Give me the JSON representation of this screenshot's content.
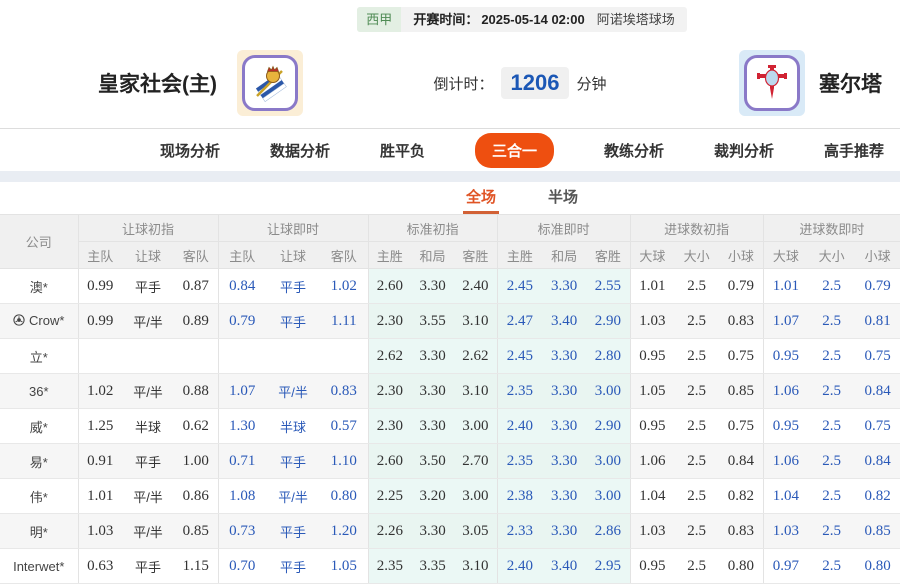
{
  "top_bar": {
    "league": "西甲",
    "kickoff_label": "开赛时间：",
    "kickoff_time": "2025-05-14 02:00",
    "venue": "阿诺埃塔球场"
  },
  "match_header": {
    "home_name": "皇家社会(主)",
    "away_name": "塞尔塔",
    "countdown_label": "倒计时：",
    "countdown_value": "1206",
    "countdown_unit": "分钟"
  },
  "nav_tabs": [
    {
      "label": "现场分析",
      "active": false
    },
    {
      "label": "数据分析",
      "active": false
    },
    {
      "label": "胜平负",
      "active": false
    },
    {
      "label": "三合一",
      "active": true
    },
    {
      "label": "教练分析",
      "active": false
    },
    {
      "label": "裁判分析",
      "active": false
    },
    {
      "label": "高手推荐",
      "active": false
    }
  ],
  "sub_tabs": [
    {
      "label": "全场",
      "active": true
    },
    {
      "label": "半场",
      "active": false
    }
  ],
  "odds_table": {
    "company_header": "公司",
    "groups": [
      {
        "label": "让球初指",
        "cols": [
          "主队",
          "让球",
          "客队"
        ]
      },
      {
        "label": "让球即时",
        "cols": [
          "主队",
          "让球",
          "客队"
        ]
      },
      {
        "label": "标准初指",
        "cols": [
          "主胜",
          "和局",
          "客胜"
        ]
      },
      {
        "label": "标准即时",
        "cols": [
          "主胜",
          "和局",
          "客胜"
        ]
      },
      {
        "label": "进球数初指",
        "cols": [
          "大球",
          "大小",
          "小球"
        ]
      },
      {
        "label": "进球数即时",
        "cols": [
          "大球",
          "大小",
          "小球"
        ]
      }
    ],
    "rows": [
      {
        "company": "澳*",
        "has_icon": false,
        "cells": [
          [
            "0.99",
            "平手",
            "0.87"
          ],
          [
            "0.84",
            "平手",
            "1.02"
          ],
          [
            "2.60",
            "3.30",
            "2.40"
          ],
          [
            "2.45",
            "3.30",
            "2.55"
          ],
          [
            "1.01",
            "2.5",
            "0.79"
          ],
          [
            "1.01",
            "2.5",
            "0.79"
          ]
        ]
      },
      {
        "company": "Crow*",
        "has_icon": true,
        "cells": [
          [
            "0.99",
            "平/半",
            "0.89"
          ],
          [
            "0.79",
            "平手",
            "1.11"
          ],
          [
            "2.30",
            "3.55",
            "3.10"
          ],
          [
            "2.47",
            "3.40",
            "2.90"
          ],
          [
            "1.03",
            "2.5",
            "0.83"
          ],
          [
            "1.07",
            "2.5",
            "0.81"
          ]
        ]
      },
      {
        "company": "立*",
        "has_icon": false,
        "cells": [
          [
            "",
            "",
            ""
          ],
          [
            "",
            "",
            ""
          ],
          [
            "2.62",
            "3.30",
            "2.62"
          ],
          [
            "2.45",
            "3.30",
            "2.80"
          ],
          [
            "0.95",
            "2.5",
            "0.75"
          ],
          [
            "0.95",
            "2.5",
            "0.75"
          ]
        ]
      },
      {
        "company": "36*",
        "has_icon": false,
        "cells": [
          [
            "1.02",
            "平/半",
            "0.88"
          ],
          [
            "1.07",
            "平/半",
            "0.83"
          ],
          [
            "2.30",
            "3.30",
            "3.10"
          ],
          [
            "2.35",
            "3.30",
            "3.00"
          ],
          [
            "1.05",
            "2.5",
            "0.85"
          ],
          [
            "1.06",
            "2.5",
            "0.84"
          ]
        ]
      },
      {
        "company": "威*",
        "has_icon": false,
        "cells": [
          [
            "1.25",
            "半球",
            "0.62"
          ],
          [
            "1.30",
            "半球",
            "0.57"
          ],
          [
            "2.30",
            "3.30",
            "3.00"
          ],
          [
            "2.40",
            "3.30",
            "2.90"
          ],
          [
            "0.95",
            "2.5",
            "0.75"
          ],
          [
            "0.95",
            "2.5",
            "0.75"
          ]
        ]
      },
      {
        "company": "易*",
        "has_icon": false,
        "cells": [
          [
            "0.91",
            "平手",
            "1.00"
          ],
          [
            "0.71",
            "平手",
            "1.10"
          ],
          [
            "2.60",
            "3.50",
            "2.70"
          ],
          [
            "2.35",
            "3.30",
            "3.00"
          ],
          [
            "1.06",
            "2.5",
            "0.84"
          ],
          [
            "1.06",
            "2.5",
            "0.84"
          ]
        ]
      },
      {
        "company": "伟*",
        "has_icon": false,
        "cells": [
          [
            "1.01",
            "平/半",
            "0.86"
          ],
          [
            "1.08",
            "平/半",
            "0.80"
          ],
          [
            "2.25",
            "3.20",
            "3.00"
          ],
          [
            "2.38",
            "3.30",
            "3.00"
          ],
          [
            "1.04",
            "2.5",
            "0.82"
          ],
          [
            "1.04",
            "2.5",
            "0.82"
          ]
        ]
      },
      {
        "company": "明*",
        "has_icon": false,
        "cells": [
          [
            "1.03",
            "平/半",
            "0.85"
          ],
          [
            "0.73",
            "平手",
            "1.20"
          ],
          [
            "2.26",
            "3.30",
            "3.05"
          ],
          [
            "2.33",
            "3.30",
            "2.86"
          ],
          [
            "1.03",
            "2.5",
            "0.83"
          ],
          [
            "1.03",
            "2.5",
            "0.85"
          ]
        ]
      },
      {
        "company": "Interwet*",
        "has_icon": false,
        "cells": [
          [
            "0.63",
            "平手",
            "1.15"
          ],
          [
            "0.70",
            "平手",
            "1.05"
          ],
          [
            "2.35",
            "3.35",
            "3.10"
          ],
          [
            "2.40",
            "3.40",
            "2.95"
          ],
          [
            "0.95",
            "2.5",
            "0.80"
          ],
          [
            "0.97",
            "2.5",
            "0.80"
          ]
        ]
      }
    ]
  },
  "colors": {
    "accent_orange": "#ee4f10",
    "live_blue": "#2a59b8",
    "countdown_blue": "#1b57b5",
    "std_column_tint": "#ebf8f5",
    "league_green": "#4f8b54"
  }
}
